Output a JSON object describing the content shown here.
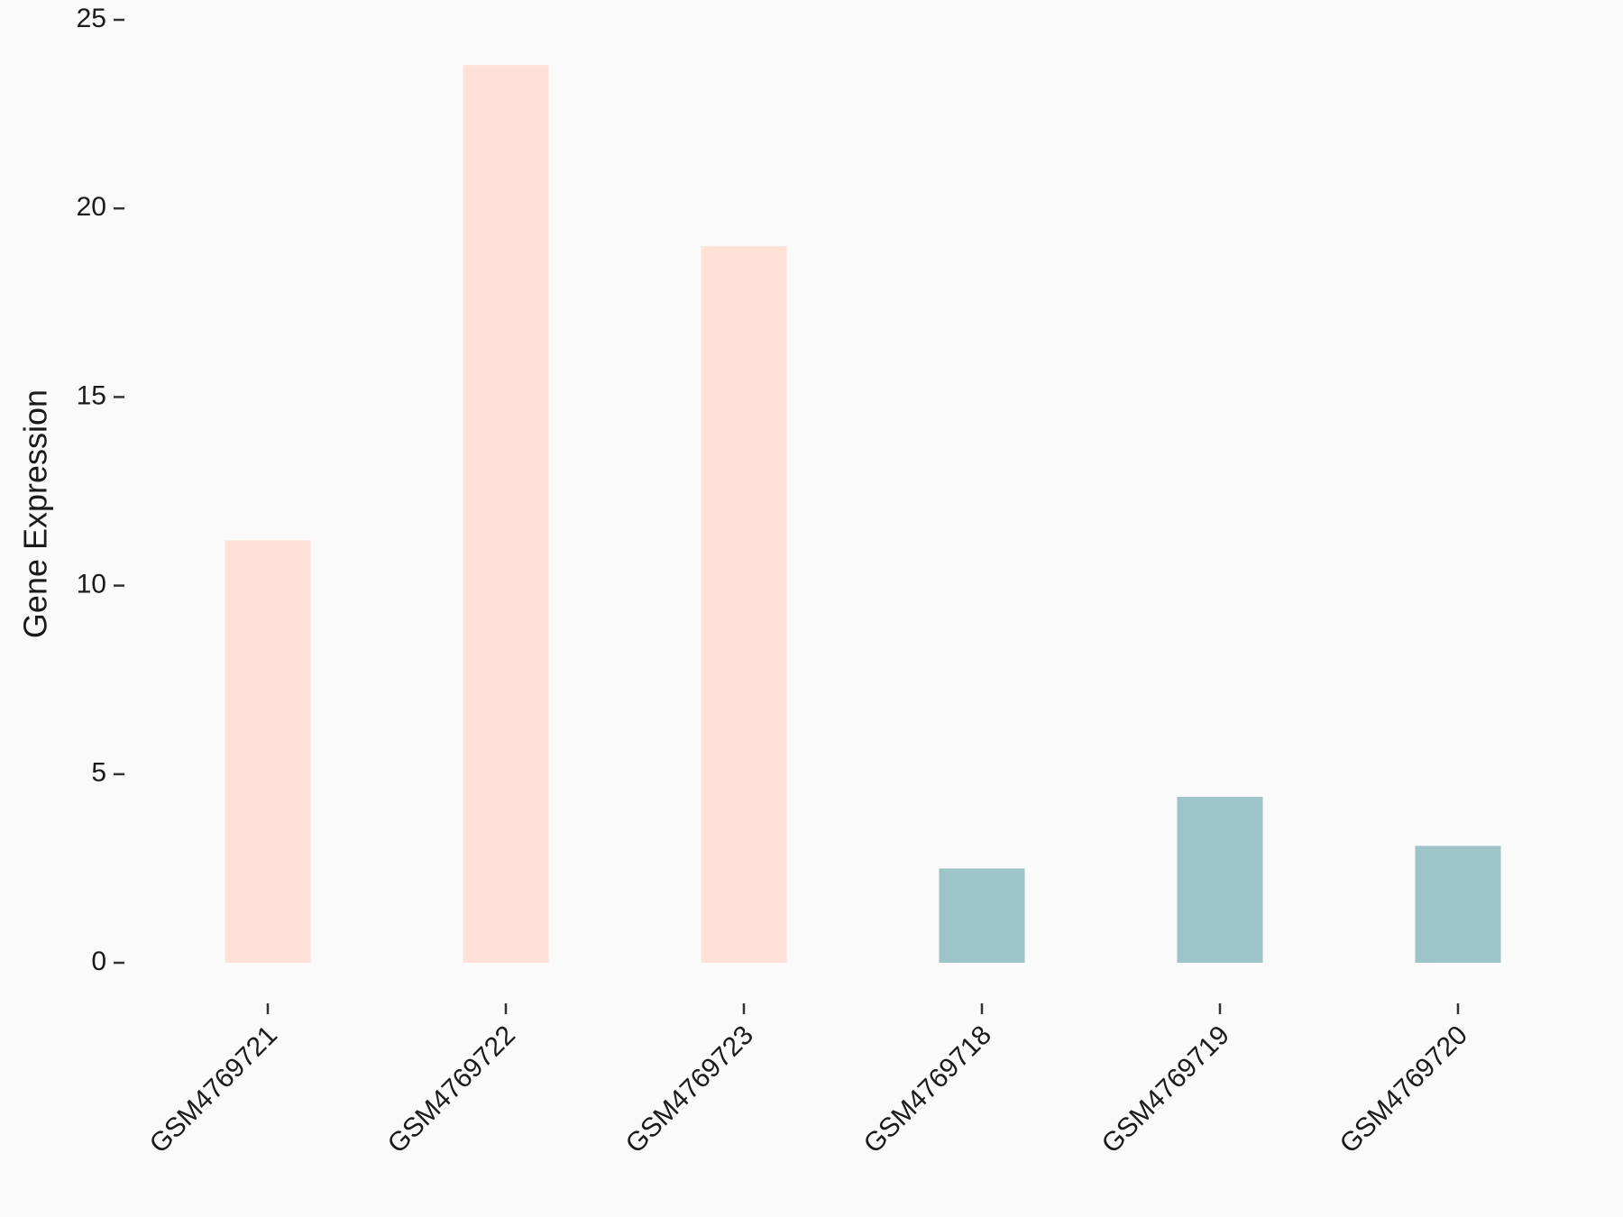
{
  "chart_data": {
    "type": "bar",
    "y_label": "Gene Expression",
    "categories": [
      "GSM4769721",
      "GSM4769722",
      "GSM4769723",
      "GSM4769718",
      "GSM4769719",
      "GSM4769720"
    ],
    "values": [
      11.2,
      23.8,
      19.0,
      2.5,
      4.4,
      3.1
    ],
    "colors": [
      "#ffe1d8",
      "#ffe1d8",
      "#ffe1d8",
      "#9dc4c8",
      "#9dc4c8",
      "#9dc4c8"
    ],
    "ylim": [
      0,
      25
    ],
    "yticks": [
      0,
      5,
      10,
      15,
      20,
      25
    ]
  }
}
